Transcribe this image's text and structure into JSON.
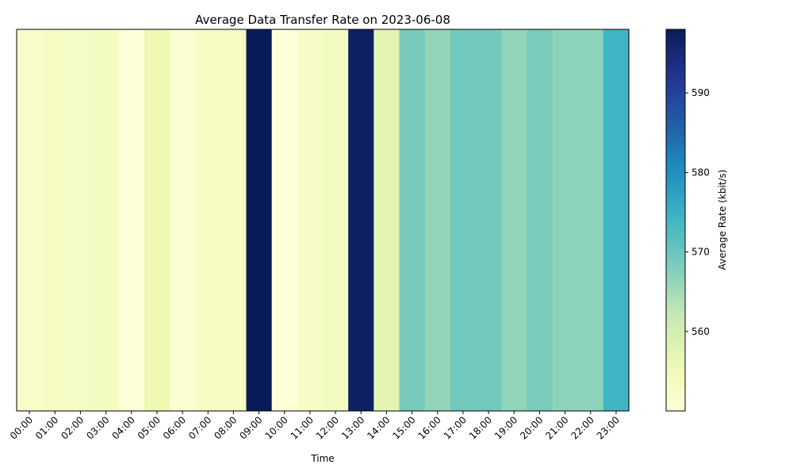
{
  "chart_data": {
    "type": "heatmap",
    "title": "Average Data Transfer Rate on 2023-06-08",
    "xlabel": "Time",
    "ylabel": "",
    "colorbar_label": "Average Rate (kbit/s)",
    "colormap": "YlGnBu",
    "color_range": [
      550,
      598
    ],
    "colorbar_ticks": [
      560,
      570,
      580,
      590
    ],
    "categories": [
      "00:00",
      "01:00",
      "02:00",
      "03:00",
      "04:00",
      "05:00",
      "06:00",
      "07:00",
      "08:00",
      "09:00",
      "10:00",
      "11:00",
      "12:00",
      "13:00",
      "14:00",
      "15:00",
      "16:00",
      "17:00",
      "18:00",
      "19:00",
      "20:00",
      "21:00",
      "22:00",
      "23:00"
    ],
    "values": [
      552.5,
      553.5,
      553.2,
      553.6,
      550.5,
      555.8,
      551.2,
      553.3,
      553.3,
      598.0,
      550.2,
      552.8,
      553.8,
      597.0,
      557.5,
      568.7,
      566.3,
      569.2,
      569.2,
      566.6,
      568.6,
      566.8,
      566.8,
      574.2
    ],
    "grid": false,
    "legend": "colorbar-right"
  }
}
